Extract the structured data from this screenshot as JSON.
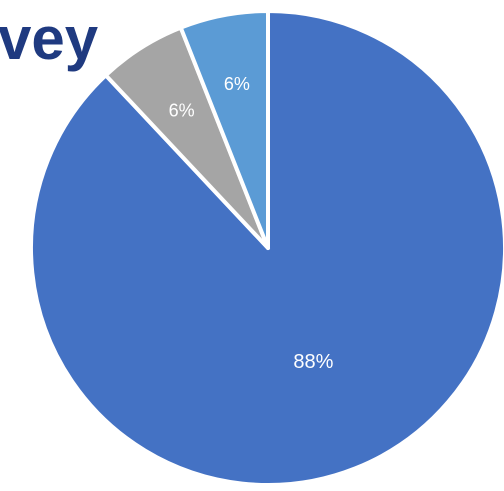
{
  "title_fragment": "vey",
  "chart_data": {
    "type": "pie",
    "title": "",
    "start": "top",
    "direction": "clockwise",
    "slices": [
      {
        "value": 88,
        "label": "88%",
        "color": "#4472c4"
      },
      {
        "value": 6,
        "label": "6%",
        "color": "#a5a5a5"
      },
      {
        "value": 6,
        "label": "6%",
        "color": "#5b9bd5"
      }
    ],
    "slice_border_color": "#ffffff",
    "label_color": "#ffffff"
  }
}
